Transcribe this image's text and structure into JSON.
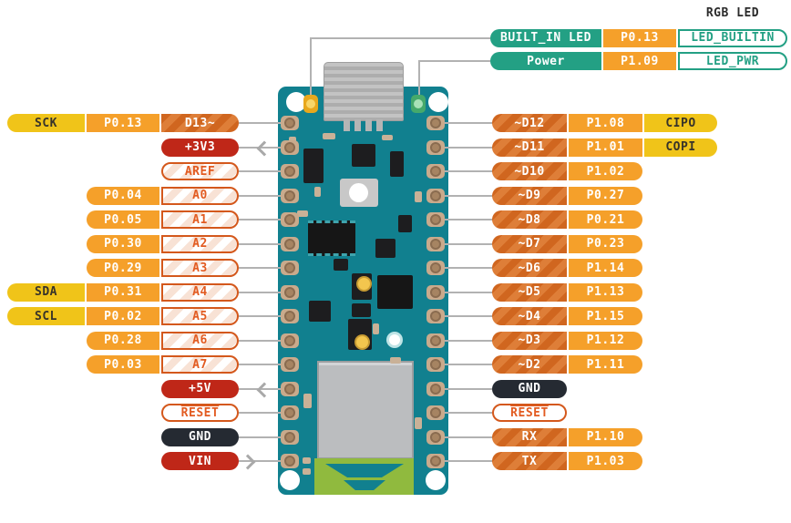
{
  "rgb_led_label": "RGB LED",
  "colors": {
    "teal": "#23a084",
    "orange": "#f5a02a",
    "yellow": "#f0c419",
    "digital_orange": "#d0661f",
    "digital_stripe": "#de7e38",
    "red": "#bf2718",
    "ground_black": "#252a32",
    "outline_border": "#d4581c",
    "outline_text": "#e25b21",
    "board_teal": "#11808f",
    "antenna_green": "#90ba3e",
    "wire_gray": "#b2b2b2",
    "builtin_led_yellow": "#e8a81d",
    "power_led_green": "#45a96b"
  },
  "top_rows": [
    {
      "function": "BUILT_IN LED",
      "port": "P0.13",
      "signal": "LED_BUILTIN"
    },
    {
      "function": "Power",
      "port": "P1.09",
      "signal": "LED_PWR"
    }
  ],
  "left_rows": [
    {
      "bus": "SCK",
      "port": "P0.13",
      "pin": "D13~",
      "style": "digital"
    },
    {
      "pin": "+3V3",
      "style": "power",
      "arrow": "left"
    },
    {
      "pin": "AREF",
      "style": "analog"
    },
    {
      "port": "P0.04",
      "pin": "A0",
      "style": "analog"
    },
    {
      "port": "P0.05",
      "pin": "A1",
      "style": "analog"
    },
    {
      "port": "P0.30",
      "pin": "A2",
      "style": "analog"
    },
    {
      "port": "P0.29",
      "pin": "A3",
      "style": "analog"
    },
    {
      "bus": "SDA",
      "port": "P0.31",
      "pin": "A4",
      "style": "analog"
    },
    {
      "bus": "SCL",
      "port": "P0.02",
      "pin": "A5",
      "style": "analog"
    },
    {
      "port": "P0.28",
      "pin": "A6",
      "style": "analog"
    },
    {
      "port": "P0.03",
      "pin": "A7",
      "style": "analog"
    },
    {
      "pin": "+5V",
      "style": "power",
      "arrow": "left"
    },
    {
      "pin": "RESET",
      "style": "reset"
    },
    {
      "pin": "GND",
      "style": "ground"
    },
    {
      "pin": "VIN",
      "style": "power",
      "arrow": "right"
    }
  ],
  "right_rows": [
    {
      "pin": "~D12",
      "port": "P1.08",
      "bus": "CIPO",
      "style": "digital"
    },
    {
      "pin": "~D11",
      "port": "P1.01",
      "bus": "COPI",
      "style": "digital"
    },
    {
      "pin": "~D10",
      "port": "P1.02",
      "style": "digital"
    },
    {
      "pin": "~D9",
      "port": "P0.27",
      "style": "digital"
    },
    {
      "pin": "~D8",
      "port": "P0.21",
      "style": "digital"
    },
    {
      "pin": "~D7",
      "port": "P0.23",
      "style": "digital"
    },
    {
      "pin": "~D6",
      "port": "P1.14",
      "style": "digital"
    },
    {
      "pin": "~D5",
      "port": "P1.13",
      "style": "digital"
    },
    {
      "pin": "~D4",
      "port": "P1.15",
      "style": "digital"
    },
    {
      "pin": "~D3",
      "port": "P1.12",
      "style": "digital"
    },
    {
      "pin": "~D2",
      "port": "P1.11",
      "style": "digital"
    },
    {
      "pin": "GND",
      "style": "ground"
    },
    {
      "pin": "RESET",
      "style": "reset"
    },
    {
      "pin": "RX",
      "port": "P1.10",
      "style": "digital"
    },
    {
      "pin": "TX",
      "port": "P1.03",
      "style": "digital"
    }
  ]
}
